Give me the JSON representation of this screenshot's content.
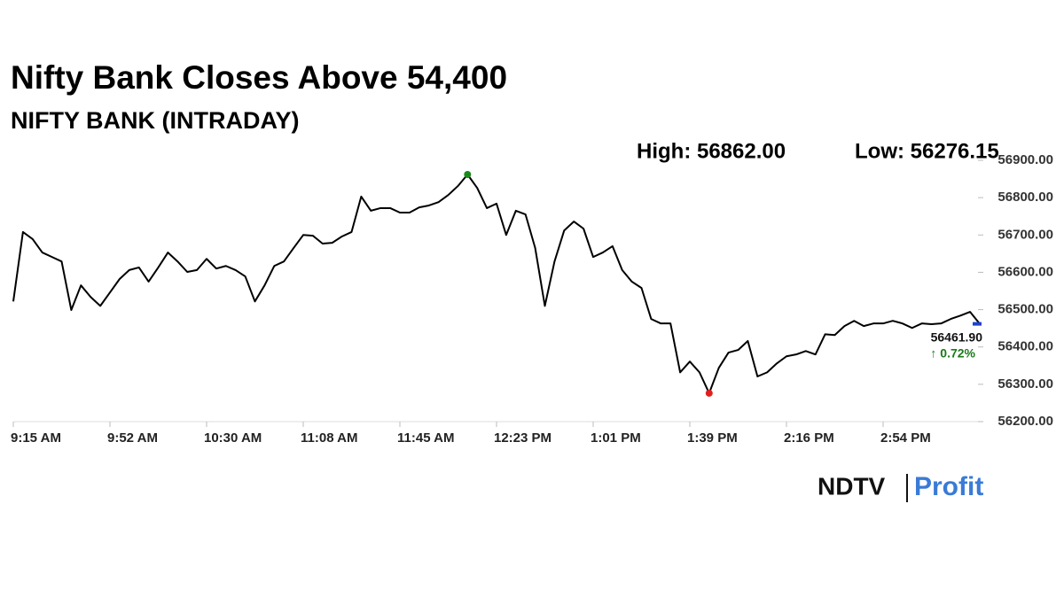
{
  "chart_data": {
    "type": "line",
    "title": "Nifty Bank Closes Above 54,400",
    "subtitle": "NIFTY BANK (INTRADAY)",
    "high_label": "High: 56862.00",
    "low_label": "Low: 56276.15",
    "last_label": "56461.90",
    "change_label": "↑ 0.72%",
    "color": "#000000",
    "high_color": "#1a8a1a",
    "low_color": "#e02020",
    "last_color": "#2040d0",
    "change_color": "#1a7a1a",
    "values": [
      56522,
      56708,
      56689,
      56653,
      56641,
      56629,
      56499,
      56565,
      56534,
      56510,
      56546,
      56582,
      56606,
      56613,
      56575,
      56613,
      56653,
      56629,
      56601,
      56606,
      56636,
      56610,
      56617,
      56606,
      56589,
      56522,
      56565,
      56617,
      56629,
      56665,
      56700,
      56698,
      56677,
      56679,
      56696,
      56708,
      56803,
      56765,
      56772,
      56772,
      56760,
      56760,
      56774,
      56779,
      56788,
      56807,
      56831,
      56862,
      56826,
      56772,
      56784,
      56700,
      56765,
      56755,
      56665,
      56510,
      56629,
      56712,
      56736,
      56717,
      56641,
      56653,
      56670,
      56606,
      56575,
      56558,
      56475,
      56463,
      56463,
      56332,
      56361,
      56332,
      56276.15,
      56344,
      56385,
      56392,
      56416,
      56321,
      56332,
      56356,
      56375,
      56380,
      56389,
      56380,
      56434,
      56432,
      56456,
      56470,
      56456,
      56463,
      56463,
      56470,
      56463,
      56451,
      56463,
      56461,
      56463,
      56475,
      56484,
      56494,
      56461.9
    ],
    "xlim": [
      0,
      100
    ],
    "xticks": [
      {
        "value": 0,
        "label": "9:15 AM"
      },
      {
        "value": 10,
        "label": "9:52 AM"
      },
      {
        "value": 20,
        "label": "10:30 AM"
      },
      {
        "value": 30,
        "label": "11:08 AM"
      },
      {
        "value": 40,
        "label": "11:45 AM"
      },
      {
        "value": 50,
        "label": "12:23 PM"
      },
      {
        "value": 60,
        "label": "1:01 PM"
      },
      {
        "value": 70,
        "label": "1:39 PM"
      },
      {
        "value": 80,
        "label": "2:16 PM"
      },
      {
        "value": 90,
        "label": "2:54 PM"
      }
    ],
    "ylim": [
      56200,
      56900
    ],
    "yticks": [
      {
        "value": 56200,
        "label": "56200.00"
      },
      {
        "value": 56300,
        "label": "56300.00"
      },
      {
        "value": 56400,
        "label": "56400.00"
      },
      {
        "value": 56500,
        "label": "56500.00"
      },
      {
        "value": 56600,
        "label": "56600.00"
      },
      {
        "value": 56700,
        "label": "56700.00"
      },
      {
        "value": 56800,
        "label": "56800.00"
      },
      {
        "value": 56900,
        "label": "56900.00"
      }
    ]
  },
  "logo": {
    "ndtv": "NDTV",
    "profit": "Profit"
  }
}
